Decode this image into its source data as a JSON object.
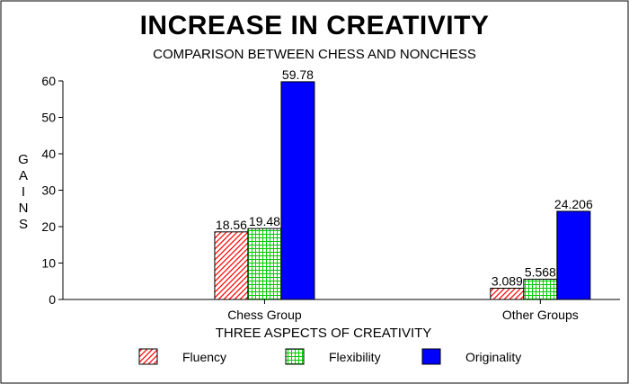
{
  "chart_data": {
    "type": "bar",
    "title": "INCREASE IN CREATIVITY",
    "subtitle": "COMPARISON BETWEEN CHESS AND NONCHESS",
    "xlabel": "THREE ASPECTS OF CREATIVITY",
    "ylabel": "GAINS",
    "ylim": [
      0,
      60
    ],
    "yticks": [
      "0",
      "10",
      "20",
      "30",
      "40",
      "50",
      "60"
    ],
    "categories": [
      "Chess Group",
      "Other Groups"
    ],
    "series": [
      {
        "name": "Fluency",
        "values": [
          18.56,
          3.089
        ],
        "labels": [
          "18.56",
          "3.089"
        ],
        "color": "#ff0000",
        "pattern": "diagonal-hatch"
      },
      {
        "name": "Flexibility",
        "values": [
          19.48,
          5.568
        ],
        "labels": [
          "19.48",
          "5.568"
        ],
        "color": "#00cc00",
        "pattern": "grid"
      },
      {
        "name": "Originality",
        "values": [
          59.78,
          24.206
        ],
        "labels": [
          "59.78",
          "24.206"
        ],
        "color": "#0000ff",
        "pattern": "solid"
      }
    ],
    "legend_position": "bottom",
    "grid": false
  }
}
